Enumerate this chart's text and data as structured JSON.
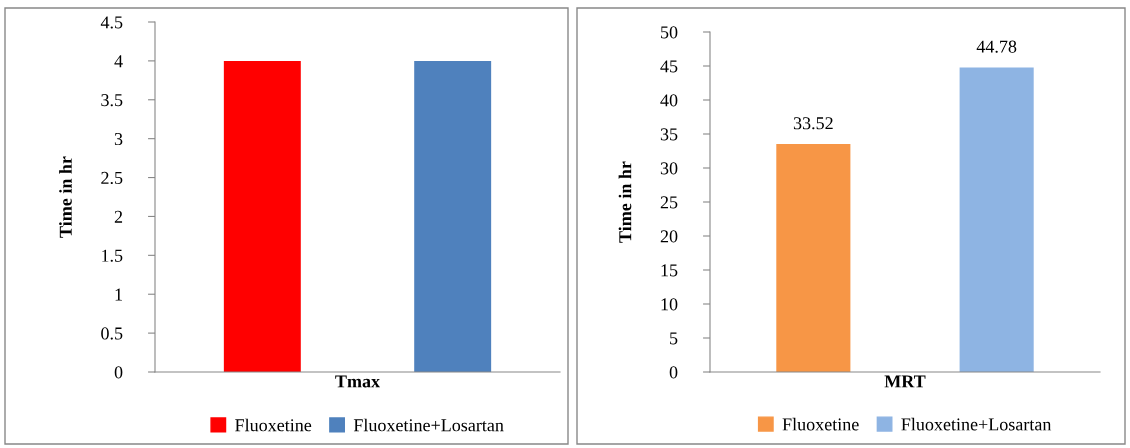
{
  "chart_data": [
    {
      "type": "bar",
      "categories": [
        "Tmax"
      ],
      "ylabel": "Time in hr",
      "ylim": [
        0,
        4.5
      ],
      "yticks": [
        0,
        {
          "value": 0.5,
          "label": "0.5"
        },
        1,
        {
          "value": 1.5,
          "label": "1.5"
        },
        2,
        {
          "value": 2.5,
          "label": "2.5"
        },
        3,
        {
          "value": 3.5,
          "label": "3.5"
        },
        4,
        {
          "value": 4.5,
          "label": "4.5"
        }
      ],
      "grid": false,
      "legend": "bottom",
      "series": [
        {
          "name": "Fluoxetine",
          "color": "#ff0000",
          "values": [
            4
          ]
        },
        {
          "name": "Fluoxetine+Losartan",
          "color": "#4f81bd",
          "values": [
            4
          ]
        }
      ]
    },
    {
      "type": "bar",
      "categories": [
        "MRT"
      ],
      "ylabel": "Time in hr",
      "ylim": [
        0,
        50
      ],
      "yticks": [
        0,
        5,
        10,
        15,
        20,
        25,
        30,
        35,
        40,
        45,
        50
      ],
      "grid": false,
      "legend": "bottom",
      "data_labels": true,
      "series": [
        {
          "name": "Fluoxetine",
          "color": "#f79646",
          "values": [
            33.52
          ]
        },
        {
          "name": "Fluoxetine+Losartan",
          "color": "#8eb4e3",
          "values": [
            44.78
          ]
        }
      ]
    }
  ]
}
